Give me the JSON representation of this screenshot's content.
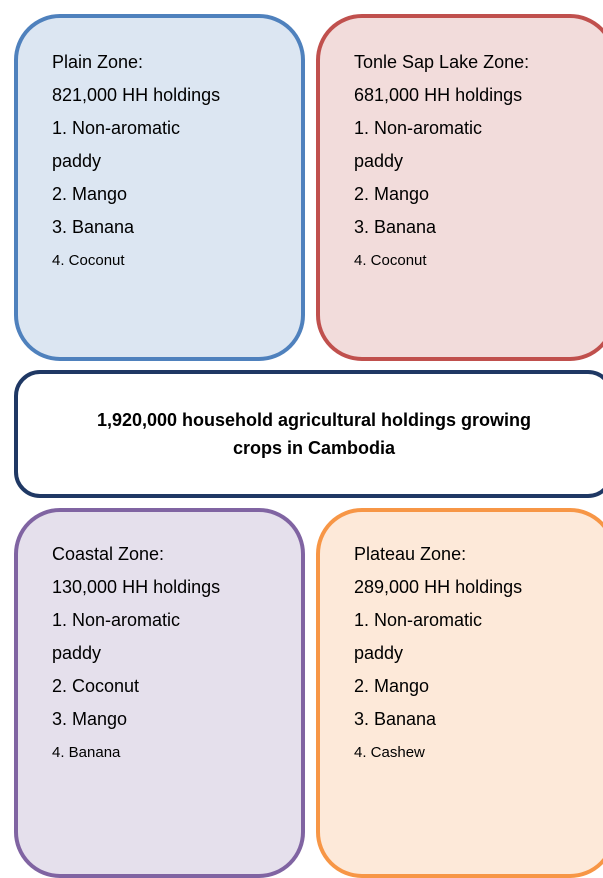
{
  "center": "1,920,000 household agricultural holdings growing crops in Cambodia",
  "zones": [
    {
      "name": "Plain Zone:",
      "holdings": "821,000 HH holdings",
      "crops": [
        "1. Non-aromatic paddy",
        "2. Mango",
        "3. Banana",
        "4. Coconut"
      ]
    },
    {
      "name": "Tonle Sap Lake Zone:",
      "holdings": "681,000 HH holdings",
      "crops": [
        "1. Non-aromatic paddy",
        "2. Mango",
        "3. Banana",
        "4. Coconut"
      ]
    },
    {
      "name": "Coastal Zone:",
      "holdings": "130,000 HH holdings",
      "crops": [
        "1. Non-aromatic paddy",
        "2. Coconut",
        "3. Mango",
        "4. Banana"
      ]
    },
    {
      "name": "Plateau Zone:",
      "holdings": "289,000 HH holdings",
      "crops": [
        "1. Non-aromatic paddy",
        "2. Mango",
        "3. Banana",
        "4. Cashew"
      ]
    }
  ]
}
